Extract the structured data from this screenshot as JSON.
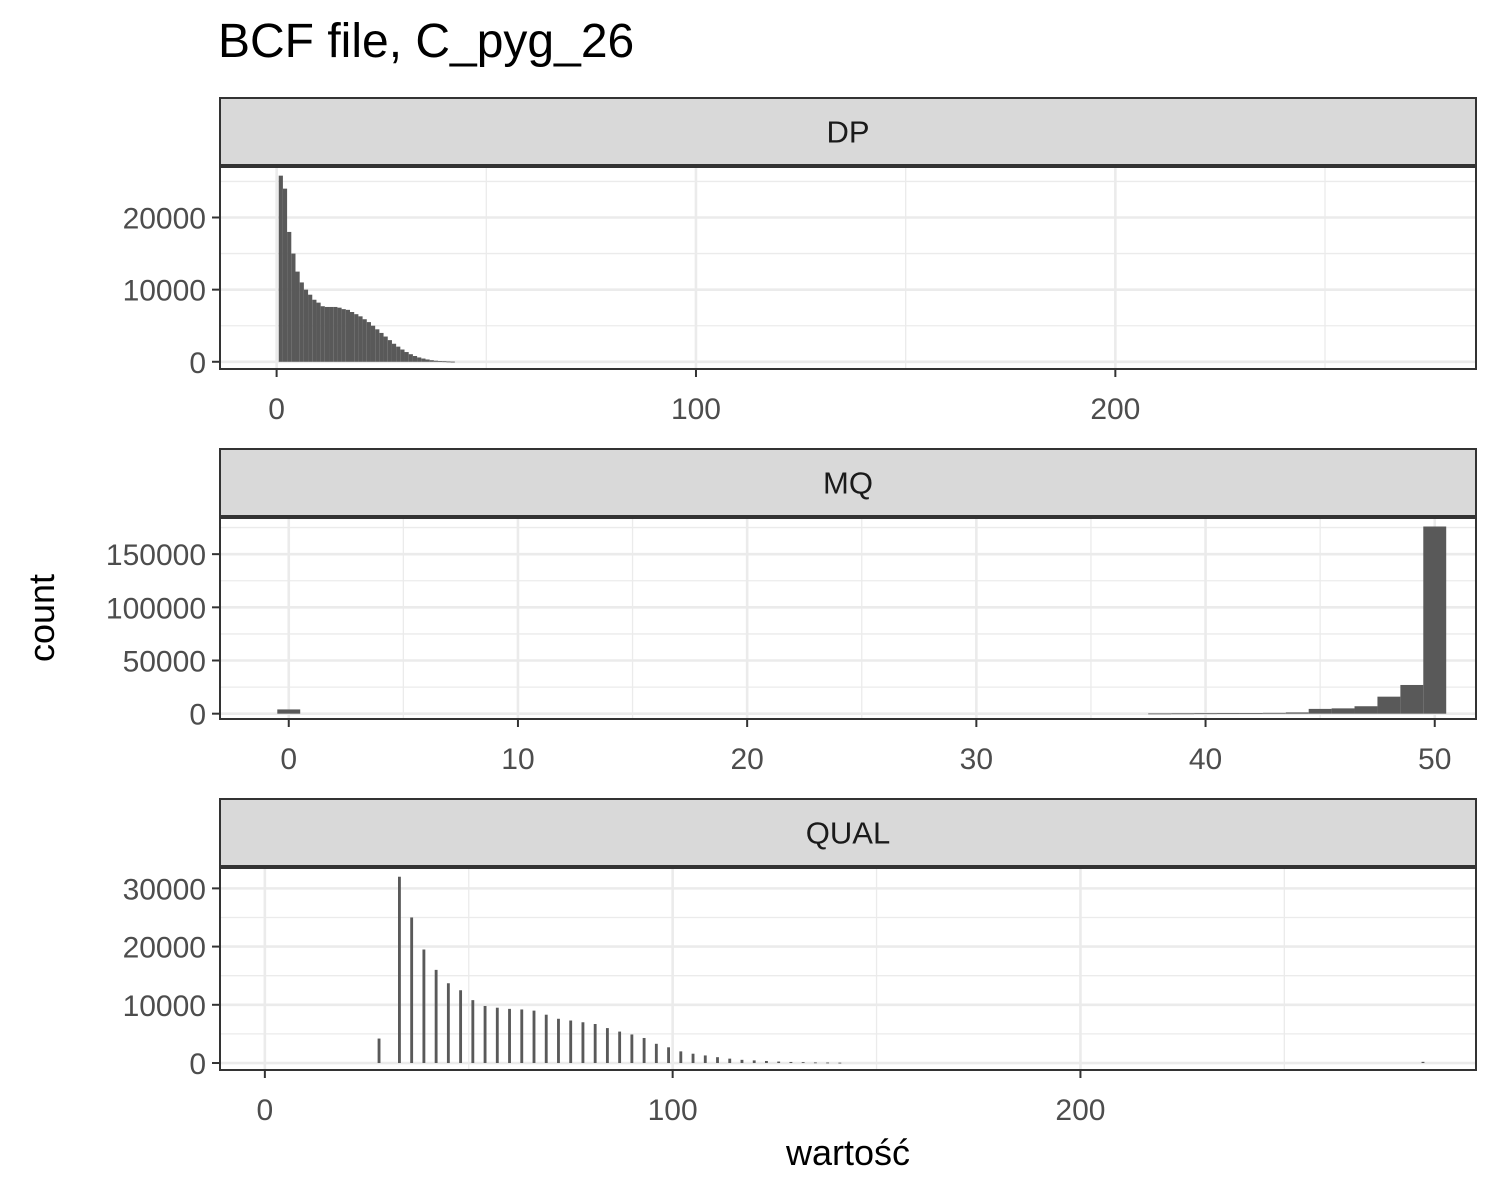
{
  "chart_title": "BCF file, C_pyg_26",
  "chart_data": {
    "type": "bar",
    "title": "BCF file, C_pyg_26",
    "xlabel": "wartość",
    "ylabel": "count",
    "grid": true,
    "legend": "none",
    "bar_color": "#595959",
    "strip_color": "#d9d9d9",
    "facets": [
      {
        "name": "DP",
        "xlim": [
          -13.5,
          286
        ],
        "ylim": [
          -1000,
          27000
        ],
        "x_ticks": [
          0,
          100,
          200
        ],
        "x_tick_labels": [
          "0",
          "100",
          "200"
        ],
        "y_ticks": [
          0,
          10000,
          20000
        ],
        "y_tick_labels": [
          "0",
          "10000",
          "20000"
        ],
        "bin_width": 1,
        "x": [
          1,
          2,
          3,
          4,
          5,
          6,
          7,
          8,
          9,
          10,
          11,
          12,
          13,
          14,
          15,
          16,
          17,
          18,
          19,
          20,
          21,
          22,
          23,
          24,
          25,
          26,
          27,
          28,
          29,
          30,
          31,
          32,
          33,
          34,
          35,
          36,
          37,
          38,
          39,
          40,
          41,
          42
        ],
        "values": [
          25800,
          24000,
          18000,
          15000,
          12500,
          11000,
          10000,
          9300,
          8600,
          8200,
          7700,
          7600,
          7600,
          7600,
          7500,
          7300,
          7200,
          6900,
          6600,
          6300,
          5900,
          5500,
          5000,
          4500,
          4000,
          3500,
          3000,
          2500,
          2100,
          1700,
          1350,
          1050,
          800,
          600,
          450,
          320,
          220,
          150,
          100,
          70,
          40,
          20
        ]
      },
      {
        "name": "MQ",
        "xlim": [
          -3,
          51.8
        ],
        "ylim": [
          -5000,
          184000
        ],
        "x_ticks": [
          0,
          10,
          20,
          30,
          40,
          50
        ],
        "x_tick_labels": [
          "0",
          "10",
          "20",
          "30",
          "40",
          "50"
        ],
        "y_ticks": [
          0,
          50000,
          100000,
          150000
        ],
        "y_tick_labels": [
          "0",
          "50000",
          "100000",
          "150000"
        ],
        "bin_width": 1,
        "x": [
          0,
          38,
          39,
          40,
          41,
          42,
          43,
          44,
          45,
          46,
          47,
          48,
          49,
          50
        ],
        "values": [
          4000,
          200,
          300,
          400,
          500,
          600,
          800,
          1200,
          4500,
          5000,
          7000,
          16000,
          27000,
          176000
        ]
      },
      {
        "name": "QUAL",
        "xlim": [
          -11,
          297
        ],
        "ylim": [
          -1200,
          33500
        ],
        "x_ticks": [
          0,
          100,
          200
        ],
        "x_tick_labels": [
          "0",
          "100",
          "200"
        ],
        "y_ticks": [
          0,
          10000,
          20000,
          30000
        ],
        "y_tick_labels": [
          "0",
          "10000",
          "20000",
          "30000"
        ],
        "bin_width": 0.7,
        "x": [
          28,
          33,
          36,
          39,
          42,
          45,
          48,
          51,
          54,
          57,
          60,
          63,
          66,
          69,
          72,
          75,
          78,
          81,
          84,
          87,
          90,
          93,
          96,
          99,
          102,
          105,
          108,
          111,
          114,
          117,
          120,
          123,
          126,
          129,
          132,
          135,
          138,
          141,
          284
        ],
        "values": [
          4200,
          32000,
          25000,
          19500,
          16000,
          13700,
          12500,
          10800,
          9800,
          9500,
          9300,
          9200,
          9000,
          8300,
          7600,
          7300,
          7000,
          6700,
          6000,
          5400,
          4900,
          4300,
          3300,
          2700,
          2000,
          1600,
          1300,
          1000,
          750,
          550,
          450,
          350,
          250,
          180,
          150,
          100,
          80,
          60,
          200
        ]
      }
    ]
  }
}
